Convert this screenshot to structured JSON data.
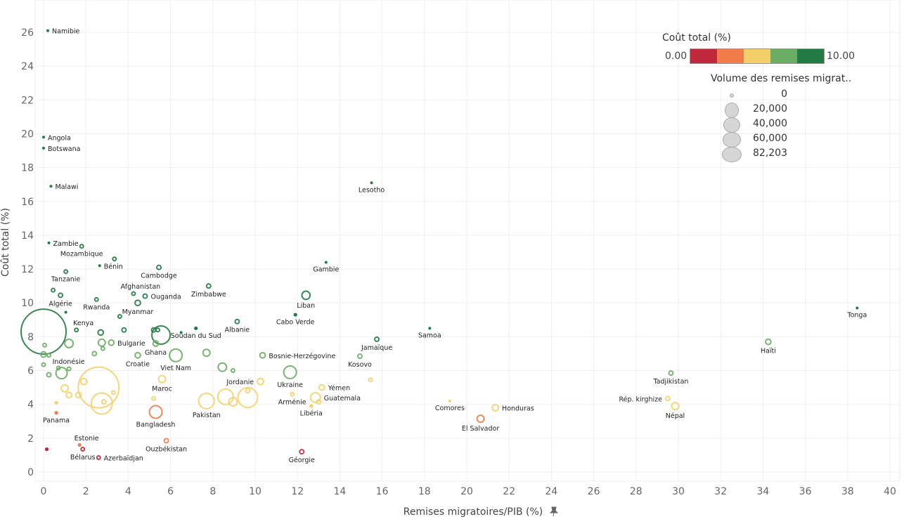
{
  "chart_data": {
    "type": "scatter",
    "xlabel": "Remises migratoires/PIB (%)",
    "ylabel": "Coût total (%)",
    "xlim": [
      0,
      40
    ],
    "ylim": [
      0,
      26
    ],
    "xticks": [
      0,
      2,
      4,
      6,
      8,
      10,
      12,
      14,
      16,
      18,
      20,
      22,
      24,
      26,
      28,
      30,
      32,
      34,
      36,
      38,
      40
    ],
    "yticks": [
      0,
      2,
      4,
      6,
      8,
      10,
      12,
      14,
      16,
      18,
      20,
      22,
      24,
      26
    ],
    "grid": true,
    "color_legend": {
      "title": "Coût total (%)",
      "min": "0.00",
      "max": "10.00",
      "colors": [
        "#c0293b",
        "#f07b4b",
        "#f3d06a",
        "#6aac64",
        "#237a45"
      ]
    },
    "size_legend": {
      "title": "Volume des remises migrat..",
      "values": [
        "0",
        "20,000",
        "40,000",
        "60,000",
        "82,203"
      ]
    },
    "legend_position": "top-right",
    "points": [
      {
        "label": "Namibie",
        "x": 0.2,
        "y": 26.1,
        "vol": 0,
        "c": 4,
        "pos": "right"
      },
      {
        "label": "Angola",
        "x": 0,
        "y": 19.8,
        "vol": 0,
        "c": 4,
        "pos": "right"
      },
      {
        "label": "Botswana",
        "x": 0,
        "y": 19.15,
        "vol": 0,
        "c": 4,
        "pos": "right"
      },
      {
        "label": "Malawi",
        "x": 0.35,
        "y": 16.9,
        "vol": 0,
        "c": 4,
        "pos": "right"
      },
      {
        "label": "Lesotho",
        "x": 15.5,
        "y": 17.1,
        "vol": 0,
        "c": 4,
        "pos": "below"
      },
      {
        "label": "Zambie",
        "x": 0.25,
        "y": 13.55,
        "vol": 0,
        "c": 4,
        "pos": "right"
      },
      {
        "label": "Mozambique",
        "x": 1.8,
        "y": 13.35,
        "vol": 85,
        "c": 4,
        "pos": "below"
      },
      {
        "label": "",
        "x": 3.35,
        "y": 12.6,
        "vol": 85,
        "c": 4
      },
      {
        "label": "Bénin",
        "x": 2.65,
        "y": 12.2,
        "vol": 0,
        "c": 4,
        "pos": "right"
      },
      {
        "label": "Cambodge",
        "x": 5.45,
        "y": 12.1,
        "vol": 340,
        "c": 4,
        "pos": "below"
      },
      {
        "label": "Gambie",
        "x": 13.35,
        "y": 12.4,
        "vol": 0,
        "c": 4,
        "pos": "below"
      },
      {
        "label": "Tanzanie",
        "x": 1.05,
        "y": 11.85,
        "vol": 85,
        "c": 4,
        "pos": "below"
      },
      {
        "label": "",
        "x": 0.45,
        "y": 10.75,
        "vol": 85,
        "c": 4
      },
      {
        "label": "Algérie",
        "x": 0.8,
        "y": 10.45,
        "vol": 340,
        "c": 4,
        "pos": "below"
      },
      {
        "label": "",
        "x": 1.05,
        "y": 9.45,
        "vol": 0,
        "c": 4
      },
      {
        "label": "Afghanistan",
        "x": 4.25,
        "y": 10.55,
        "vol": 85,
        "c": 4,
        "pos": "above"
      },
      {
        "label": "Ouganda",
        "x": 4.8,
        "y": 10.4,
        "vol": 340,
        "c": 4,
        "pos": "right"
      },
      {
        "label": "Myanmar",
        "x": 4.45,
        "y": 10.0,
        "vol": 700,
        "c": 4,
        "pos": "below"
      },
      {
        "label": "Zimbabwe",
        "x": 7.8,
        "y": 11.0,
        "vol": 340,
        "c": 4,
        "pos": "below"
      },
      {
        "label": "Liban",
        "x": 12.4,
        "y": 10.45,
        "vol": 2000,
        "c": 4,
        "pos": "below"
      },
      {
        "label": "Rwanda",
        "x": 2.5,
        "y": 10.2,
        "vol": 85,
        "c": 4,
        "pos": "below"
      },
      {
        "label": "Cabo Verde",
        "x": 11.9,
        "y": 9.3,
        "vol": 30,
        "c": 4,
        "pos": "below"
      },
      {
        "label": "",
        "x": 3.6,
        "y": 9.2,
        "vol": 85,
        "c": 4
      },
      {
        "label": "Albanie",
        "x": 9.15,
        "y": 8.9,
        "vol": 340,
        "c": 4,
        "pos": "below"
      },
      {
        "label": "Tonga",
        "x": 38.45,
        "y": 9.7,
        "vol": 0,
        "c": 4,
        "pos": "below"
      },
      {
        "label": "Samoa",
        "x": 18.25,
        "y": 8.5,
        "vol": 0,
        "c": 4,
        "pos": "below"
      },
      {
        "label": "Kenya",
        "x": 1.55,
        "y": 8.4,
        "vol": 85,
        "c": 4,
        "pos": "above"
      },
      {
        "label": "",
        "x": 0,
        "y": 8.3,
        "vol": 82203,
        "c": 4
      },
      {
        "label": "",
        "x": 2.7,
        "y": 8.25,
        "vol": 700,
        "c": 4
      },
      {
        "label": "",
        "x": 3.8,
        "y": 8.4,
        "vol": 340,
        "c": 4
      },
      {
        "label": "",
        "x": 5.2,
        "y": 8.4,
        "vol": 340,
        "c": 4
      },
      {
        "label": "",
        "x": 5.4,
        "y": 8.4,
        "vol": 150,
        "c": 4
      },
      {
        "label": "",
        "x": 5.55,
        "y": 8.1,
        "vol": 12300,
        "c": 4
      },
      {
        "label": "",
        "x": 6.5,
        "y": 8.25,
        "vol": 0,
        "c": 4
      },
      {
        "label": "Soudan du Sud",
        "x": 7.2,
        "y": 8.5,
        "vol": 30,
        "c": 4,
        "pos": "below"
      },
      {
        "label": "Jamaïque",
        "x": 15.75,
        "y": 7.85,
        "vol": 340,
        "c": 4,
        "pos": "below"
      },
      {
        "label": "",
        "x": 1.2,
        "y": 7.6,
        "vol": 2140,
        "c": 3
      },
      {
        "label": "",
        "x": 0.05,
        "y": 7.5,
        "vol": 85,
        "c": 3
      },
      {
        "label": "",
        "x": 2.75,
        "y": 7.65,
        "vol": 1370,
        "c": 3
      },
      {
        "label": "Bulgarie",
        "x": 3.2,
        "y": 7.65,
        "vol": 700,
        "c": 3,
        "pos": "right"
      },
      {
        "label": "",
        "x": 2.8,
        "y": 7.3,
        "vol": 150,
        "c": 3
      },
      {
        "label": "",
        "x": 2.4,
        "y": 7.0,
        "vol": 340,
        "c": 3
      },
      {
        "label": "Ghana",
        "x": 5.3,
        "y": 7.6,
        "vol": 700,
        "c": 3,
        "pos": "below"
      },
      {
        "label": "Haïti",
        "x": 34.25,
        "y": 7.7,
        "vol": 700,
        "c": 3,
        "pos": "below"
      },
      {
        "label": "",
        "x": 0,
        "y": 6.95,
        "vol": 700,
        "c": 3
      },
      {
        "label": "",
        "x": 0.25,
        "y": 6.9,
        "vol": 85,
        "c": 3
      },
      {
        "label": "Croatie",
        "x": 4.45,
        "y": 6.9,
        "vol": 700,
        "c": 3,
        "pos": "below"
      },
      {
        "label": "Viet Nam",
        "x": 6.25,
        "y": 6.9,
        "vol": 5470,
        "c": 3,
        "pos": "below"
      },
      {
        "label": "",
        "x": 7.7,
        "y": 7.05,
        "vol": 1370,
        "c": 3
      },
      {
        "label": "Bosnie-Herzégovine",
        "x": 10.35,
        "y": 6.9,
        "vol": 700,
        "c": 3,
        "pos": "right"
      },
      {
        "label": "Kosovo",
        "x": 14.95,
        "y": 6.85,
        "vol": 340,
        "c": 3,
        "pos": "below"
      },
      {
        "label": "",
        "x": 0,
        "y": 6.35,
        "vol": 150,
        "c": 3
      },
      {
        "label": "Indonésie",
        "x": 0.85,
        "y": 5.85,
        "vol": 4190,
        "c": 3,
        "pos": "above"
      },
      {
        "label": "",
        "x": 0.25,
        "y": 5.75,
        "vol": 340,
        "c": 3
      },
      {
        "label": "",
        "x": 1.2,
        "y": 6.1,
        "vol": 150,
        "c": 3
      },
      {
        "label": "",
        "x": 0.7,
        "y": 6.15,
        "vol": 150,
        "c": 3
      },
      {
        "label": "",
        "x": 8.45,
        "y": 6.2,
        "vol": 2140,
        "c": 3
      },
      {
        "label": "",
        "x": 8.95,
        "y": 6.0,
        "vol": 85,
        "c": 3
      },
      {
        "label": "Ukraine",
        "x": 11.65,
        "y": 5.9,
        "vol": 5470,
        "c": 3,
        "pos": "below"
      },
      {
        "label": "Tadjikistan",
        "x": 29.65,
        "y": 5.85,
        "vol": 340,
        "c": 3,
        "pos": "below"
      },
      {
        "label": "Jordanie",
        "x": 10.25,
        "y": 5.35,
        "vol": 1000,
        "c": 2,
        "pos": "left"
      },
      {
        "label": "Maroc",
        "x": 5.6,
        "y": 5.5,
        "vol": 1370,
        "c": 2,
        "pos": "below"
      },
      {
        "label": "",
        "x": 1.9,
        "y": 5.35,
        "vol": 1000,
        "c": 2
      },
      {
        "label": "",
        "x": 1.0,
        "y": 4.95,
        "vol": 1370,
        "c": 2
      },
      {
        "label": "",
        "x": 2.6,
        "y": 5.0,
        "vol": 67000,
        "c": 2
      },
      {
        "label": "",
        "x": 3.3,
        "y": 4.7,
        "vol": 150,
        "c": 2
      },
      {
        "label": "",
        "x": 1.65,
        "y": 4.55,
        "vol": 700,
        "c": 2
      },
      {
        "label": "",
        "x": 1.2,
        "y": 4.55,
        "vol": 700,
        "c": 2
      },
      {
        "label": "",
        "x": 2.75,
        "y": 4.05,
        "vol": 16800,
        "c": 2
      },
      {
        "label": "",
        "x": 2.85,
        "y": 4.15,
        "vol": 340,
        "c": 2
      },
      {
        "label": "",
        "x": 0.6,
        "y": 4.1,
        "vol": 30,
        "c": 2
      },
      {
        "label": "",
        "x": 5.2,
        "y": 4.35,
        "vol": 150,
        "c": 2
      },
      {
        "label": "Pakistan",
        "x": 7.7,
        "y": 4.2,
        "vol": 8550,
        "c": 2,
        "pos": "below"
      },
      {
        "label": "",
        "x": 8.6,
        "y": 4.45,
        "vol": 8550,
        "c": 2
      },
      {
        "label": "",
        "x": 8.95,
        "y": 4.15,
        "vol": 2140,
        "c": 2
      },
      {
        "label": "",
        "x": 9.65,
        "y": 4.4,
        "vol": 14460,
        "c": 2
      },
      {
        "label": "",
        "x": 9.65,
        "y": 4.8,
        "vol": 340,
        "c": 2
      },
      {
        "label": "Arménie",
        "x": 11.75,
        "y": 4.6,
        "vol": 150,
        "c": 2,
        "pos": "below"
      },
      {
        "label": "Guatemala",
        "x": 12.85,
        "y": 4.4,
        "vol": 3000,
        "c": 2,
        "pos": "right"
      },
      {
        "label": "",
        "x": 13.0,
        "y": 4.15,
        "vol": 340,
        "c": 2
      },
      {
        "label": "Libéria",
        "x": 12.65,
        "y": 3.9,
        "vol": 30,
        "c": 2,
        "pos": "below"
      },
      {
        "label": "Yémen",
        "x": 13.15,
        "y": 5.0,
        "vol": 700,
        "c": 2,
        "pos": "right"
      },
      {
        "label": "",
        "x": 15.45,
        "y": 5.45,
        "vol": 150,
        "c": 2
      },
      {
        "label": "Comores",
        "x": 19.2,
        "y": 4.2,
        "vol": 0,
        "c": 2,
        "pos": "below"
      },
      {
        "label": "Honduras",
        "x": 21.35,
        "y": 3.8,
        "vol": 1000,
        "c": 2,
        "pos": "right"
      },
      {
        "label": "Rép. kirghize",
        "x": 29.5,
        "y": 4.35,
        "vol": 340,
        "c": 2,
        "pos": "left"
      },
      {
        "label": "Népal",
        "x": 29.85,
        "y": 3.9,
        "vol": 1370,
        "c": 2,
        "pos": "below"
      },
      {
        "label": "El Salvador",
        "x": 20.65,
        "y": 3.15,
        "vol": 1370,
        "c": 1,
        "pos": "below"
      },
      {
        "label": "Panama",
        "x": 0.6,
        "y": 3.5,
        "vol": 30,
        "c": 1,
        "pos": "below"
      },
      {
        "label": "Bangladesh",
        "x": 5.3,
        "y": 3.55,
        "vol": 5470,
        "c": 1,
        "pos": "below"
      },
      {
        "label": "Estonie",
        "x": 1.7,
        "y": 1.6,
        "vol": 30,
        "c": 1,
        "pos": "above"
      },
      {
        "label": "Bélarus",
        "x": 1.85,
        "y": 1.35,
        "vol": 150,
        "c": 0,
        "pos": "below"
      },
      {
        "label": "",
        "x": 0.15,
        "y": 1.35,
        "vol": 30,
        "c": 0
      },
      {
        "label": "Azerbaïdjan",
        "x": 2.6,
        "y": 0.85,
        "vol": 150,
        "c": 0,
        "pos": "right"
      },
      {
        "label": "Ouzbékistan",
        "x": 5.8,
        "y": 1.85,
        "vol": 340,
        "c": 1,
        "pos": "below"
      },
      {
        "label": "Géorgie",
        "x": 12.2,
        "y": 1.2,
        "vol": 340,
        "c": 0,
        "pos": "below"
      }
    ]
  }
}
